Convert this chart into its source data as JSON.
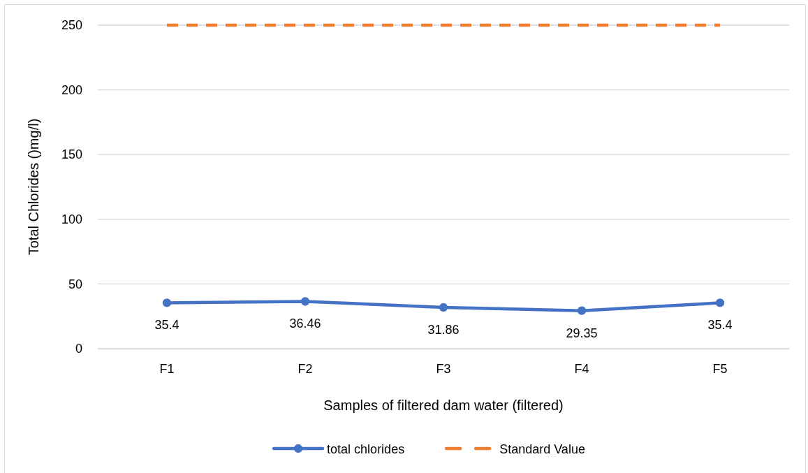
{
  "chart_data": {
    "type": "line",
    "xlabel": "Samples of filtered dam water (filtered)",
    "ylabel": "Total Chlorides ()mg/l)",
    "categories": [
      "F1",
      "F2",
      "F3",
      "F4",
      "F5"
    ],
    "series": [
      {
        "name": "total chlorides",
        "color": "#4472c4",
        "values": [
          35.4,
          36.46,
          31.86,
          29.35,
          35.4
        ],
        "marker": "circle",
        "line_style": "solid",
        "value_labels": [
          "35.4",
          "36.46",
          "31.86",
          "29.35",
          "35.4"
        ]
      },
      {
        "name": "Standard Value",
        "color": "#ed7d31",
        "values": [
          250,
          250,
          250,
          250,
          250
        ],
        "marker": "none",
        "line_style": "dashed"
      }
    ],
    "ylim": [
      0,
      250
    ],
    "yticks": [
      0,
      50,
      100,
      150,
      200,
      250
    ],
    "grid": "y",
    "legend": "bottom"
  }
}
